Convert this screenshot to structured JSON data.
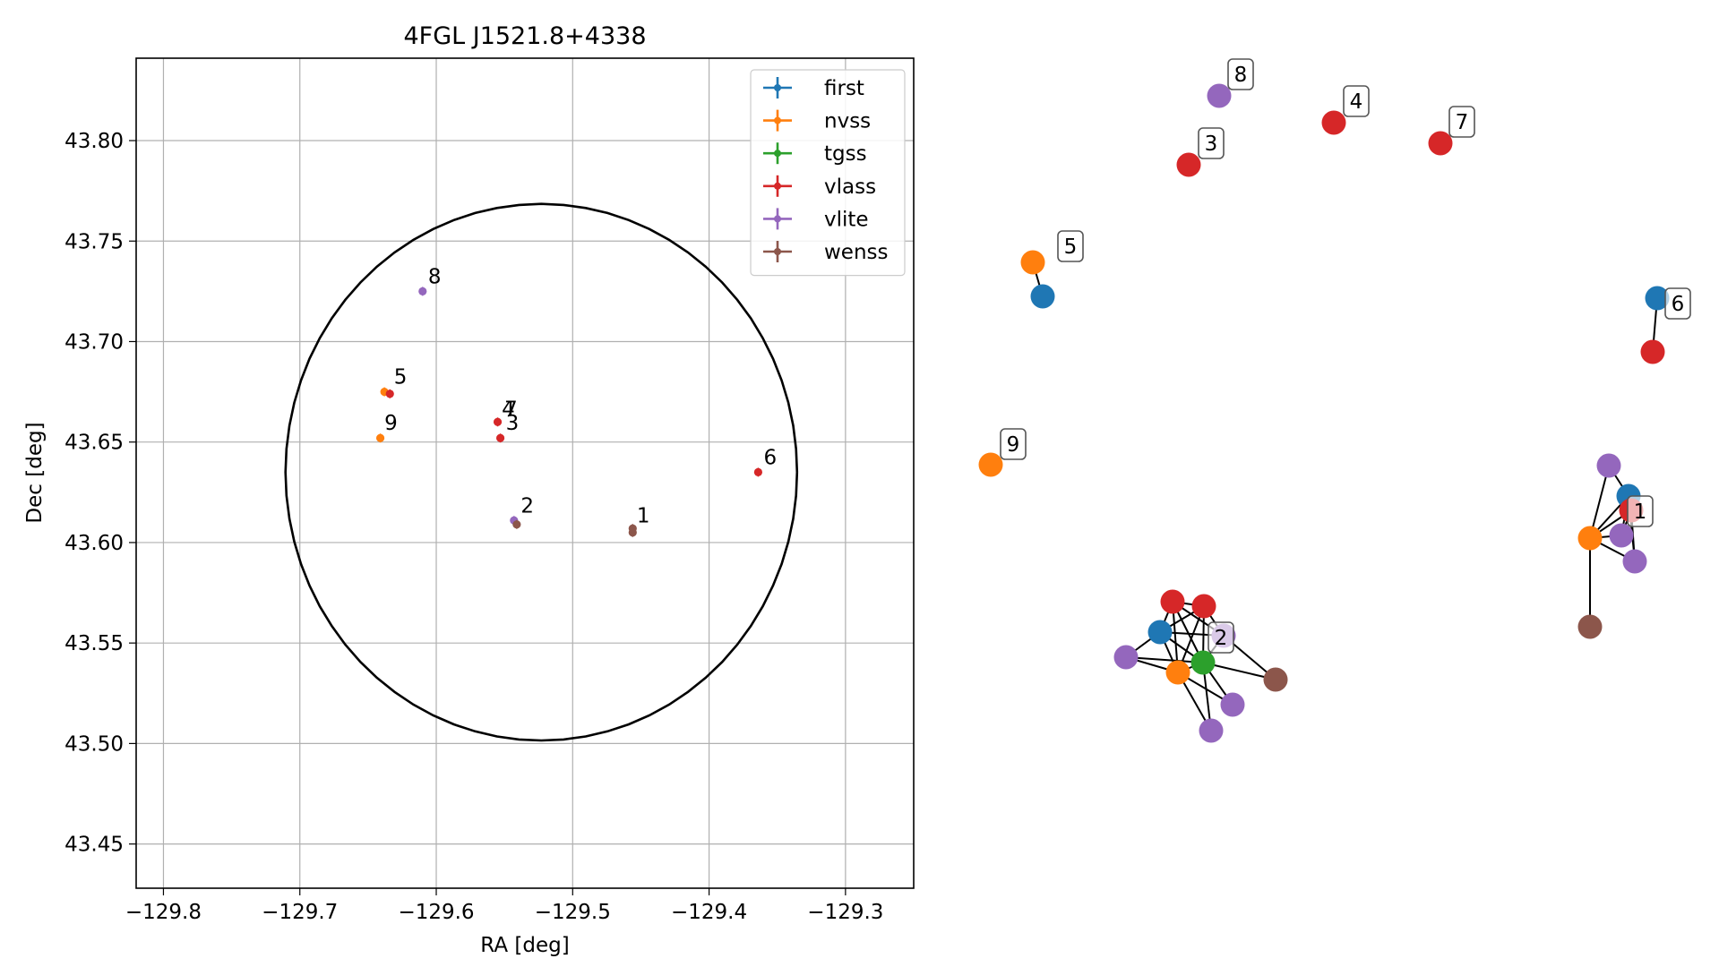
{
  "chart_data": [
    {
      "type": "scatter",
      "title": "4FGL J1521.8+4338",
      "xlabel": "RA [deg]",
      "ylabel": "Dec [deg]",
      "xlim": [
        -129.82,
        -129.25
      ],
      "ylim": [
        43.428,
        43.841
      ],
      "grid": true,
      "legend_position": "top-right",
      "x_ticks": [
        -129.8,
        -129.7,
        -129.6,
        -129.5,
        -129.4,
        -129.3
      ],
      "x_tick_labels": [
        "−129.8",
        "−129.7",
        "−129.6",
        "−129.5",
        "−129.4",
        "−129.3"
      ],
      "y_ticks": [
        43.45,
        43.5,
        43.55,
        43.6,
        43.65,
        43.7,
        43.75,
        43.8
      ],
      "y_tick_labels": [
        "43.45",
        "43.50",
        "43.55",
        "43.60",
        "43.65",
        "43.70",
        "43.75",
        "43.80"
      ],
      "ellipse": {
        "center": [
          -129.523,
          43.635
        ],
        "ra_semi_axis": 0.1875,
        "dec_semi_axis": 0.1335
      },
      "series": [
        {
          "name": "first",
          "color": "#1f77b4",
          "points": []
        },
        {
          "name": "nvss",
          "color": "#ff7f0e",
          "points": [
            [
              -129.638,
              43.675
            ],
            [
              -129.641,
              43.652
            ]
          ]
        },
        {
          "name": "tgss",
          "color": "#2ca02c",
          "points": []
        },
        {
          "name": "vlass",
          "color": "#d62728",
          "points": [
            [
              -129.634,
              43.674
            ],
            [
              -129.555,
              43.66
            ],
            [
              -129.553,
              43.652
            ],
            [
              -129.364,
              43.635
            ]
          ]
        },
        {
          "name": "vlite",
          "color": "#9467bd",
          "points": [
            [
              -129.61,
              43.725
            ],
            [
              -129.543,
              43.611
            ]
          ]
        },
        {
          "name": "wenss",
          "color": "#8c564b",
          "points": [
            [
              -129.541,
              43.609
            ],
            [
              -129.456,
              43.605
            ],
            [
              -129.456,
              43.607
            ]
          ]
        }
      ],
      "annotations": [
        {
          "text": "1",
          "x": -129.453,
          "y": 43.61
        },
        {
          "text": "2",
          "x": -129.538,
          "y": 43.615
        },
        {
          "text": "3",
          "x": -129.549,
          "y": 43.656
        },
        {
          "text": "4",
          "x": -129.552,
          "y": 43.663
        },
        {
          "text": "7",
          "x": -129.55,
          "y": 43.663
        },
        {
          "text": "5",
          "x": -129.631,
          "y": 43.679
        },
        {
          "text": "6",
          "x": -129.36,
          "y": 43.639
        },
        {
          "text": "8",
          "x": -129.606,
          "y": 43.729
        },
        {
          "text": "9",
          "x": -129.638,
          "y": 43.656
        }
      ]
    },
    {
      "type": "network",
      "nodes": [
        {
          "id": "n1",
          "color": "#d62728"
        },
        {
          "id": "n2",
          "color": "#9467bd"
        },
        {
          "id": "n3",
          "color": "#d62728"
        },
        {
          "id": "n4",
          "color": "#d62728"
        },
        {
          "id": "n5",
          "color": "#ff7f0e"
        },
        {
          "id": "n6",
          "color": "#1f77b4"
        },
        {
          "id": "n7",
          "color": "#1f77b4"
        },
        {
          "id": "n8",
          "color": "#d62728"
        },
        {
          "id": "n9",
          "color": "#ff7f0e"
        },
        {
          "id": "n10",
          "color": "#9467bd"
        },
        {
          "id": "n11",
          "color": "#1f77b4"
        },
        {
          "id": "n12",
          "color": "#d62728"
        },
        {
          "id": "n13",
          "color": "#ff7f0e"
        },
        {
          "id": "n14",
          "color": "#9467bd"
        },
        {
          "id": "n15",
          "color": "#9467bd"
        },
        {
          "id": "n16",
          "color": "#8c564b"
        },
        {
          "id": "n17",
          "color": "#d62728"
        },
        {
          "id": "n18",
          "color": "#d62728"
        },
        {
          "id": "n19",
          "color": "#1f77b4"
        },
        {
          "id": "n20",
          "color": "#9467bd"
        },
        {
          "id": "n21",
          "color": "#ff7f0e"
        },
        {
          "id": "n22",
          "color": "#2ca02c"
        },
        {
          "id": "n23",
          "color": "#9467bd"
        },
        {
          "id": "n24",
          "color": "#9467bd"
        },
        {
          "id": "n25",
          "color": "#9467bd"
        },
        {
          "id": "n26",
          "color": "#8c564b"
        }
      ],
      "edges": [
        [
          "n5",
          "n6"
        ],
        [
          "n7",
          "n8"
        ],
        [
          "n13",
          "n10"
        ],
        [
          "n13",
          "n11"
        ],
        [
          "n13",
          "n12"
        ],
        [
          "n13",
          "n14"
        ],
        [
          "n13",
          "n15"
        ],
        [
          "n13",
          "n16"
        ],
        [
          "n10",
          "n11"
        ],
        [
          "n11",
          "n14"
        ],
        [
          "n11",
          "n15"
        ],
        [
          "n12",
          "n14"
        ],
        [
          "n12",
          "n15"
        ],
        [
          "n19",
          "n20"
        ],
        [
          "n19",
          "n21"
        ],
        [
          "n19",
          "n22"
        ],
        [
          "n19",
          "n17"
        ],
        [
          "n19",
          "n18"
        ],
        [
          "n19",
          "n23"
        ],
        [
          "n20",
          "n21"
        ],
        [
          "n20",
          "n22"
        ],
        [
          "n21",
          "n22"
        ],
        [
          "n21",
          "n17"
        ],
        [
          "n21",
          "n18"
        ],
        [
          "n21",
          "n24"
        ],
        [
          "n21",
          "n25"
        ],
        [
          "n22",
          "n17"
        ],
        [
          "n22",
          "n18"
        ],
        [
          "n22",
          "n23"
        ],
        [
          "n22",
          "n24"
        ],
        [
          "n22",
          "n25"
        ],
        [
          "n22",
          "n26"
        ],
        [
          "n17",
          "n18"
        ],
        [
          "n17",
          "n23"
        ],
        [
          "n18",
          "n23"
        ],
        [
          "n23",
          "n26"
        ]
      ],
      "labels": [
        {
          "text": "8",
          "node": "n2"
        },
        {
          "text": "3",
          "node": "n1"
        },
        {
          "text": "4",
          "node": "n3"
        },
        {
          "text": "7",
          "node": "n4"
        },
        {
          "text": "5",
          "node": "n5"
        },
        {
          "text": "6",
          "node": "n7"
        },
        {
          "text": "9",
          "node": "n9"
        },
        {
          "text": "1",
          "node": "n11"
        },
        {
          "text": "2",
          "node": "n22"
        }
      ]
    }
  ]
}
